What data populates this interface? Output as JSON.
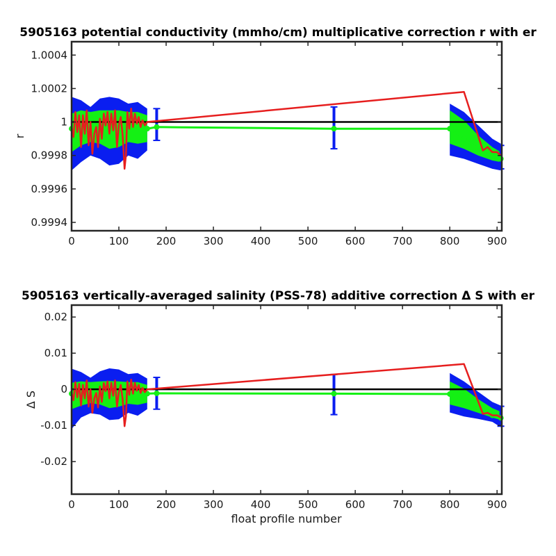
{
  "chart_data": [
    {
      "type": "line",
      "title": "5905163 potential conductivity (mmho/cm) multiplicative correction r with er",
      "xlabel": "",
      "ylabel": "r",
      "xlim": [
        0,
        910
      ],
      "ylim": [
        0.99935,
        1.00048
      ],
      "xticks": [
        0,
        100,
        200,
        300,
        400,
        500,
        600,
        700,
        800,
        900
      ],
      "xtick_labels": [
        "0",
        "100",
        "200",
        "300",
        "400",
        "500",
        "600",
        "700",
        "800",
        "900"
      ],
      "yticks": [
        0.9994,
        0.9996,
        0.9998,
        1.0,
        1.0002,
        1.0004
      ],
      "ytick_labels": [
        "0.9994",
        "0.9996",
        "0.9998",
        "1",
        "1.0002",
        "1.0004"
      ],
      "grid": false,
      "colors": {
        "outer_band": "#0a1ef0",
        "inner_band": "#14f014",
        "fit": "#14f014",
        "raw": "#e61e1e",
        "reference": "#000000"
      },
      "reference_value": 1.0,
      "fit": {
        "x": [
          0,
          20,
          40,
          60,
          80,
          100,
          120,
          140,
          160,
          180,
          555,
          800,
          830,
          860,
          890,
          908
        ],
        "y": [
          0.99996,
          0.99996,
          0.99996,
          0.99996,
          0.99996,
          0.99996,
          0.99996,
          0.99996,
          0.99996,
          0.99997,
          0.99996,
          0.99996,
          0.9999,
          0.99984,
          0.99979,
          0.99978
        ]
      },
      "inner_band": {
        "x": [
          0,
          20,
          40,
          60,
          80,
          100,
          120,
          140,
          160,
          800,
          830,
          860,
          890,
          908
        ],
        "lower": [
          0.99982,
          0.99986,
          0.99988,
          0.99987,
          0.99984,
          0.99985,
          0.99988,
          0.99987,
          0.99988,
          0.99987,
          0.99984,
          0.9998,
          0.99977,
          0.99976
        ],
        "upper": [
          1.00005,
          1.00007,
          1.00006,
          1.00007,
          1.00007,
          1.00007,
          1.00006,
          1.00006,
          1.00004,
          1.00007,
          1.00001,
          0.99992,
          0.99985,
          0.99982
        ]
      },
      "outer_band": {
        "x": [
          0,
          20,
          40,
          60,
          80,
          100,
          120,
          140,
          160,
          800,
          830,
          860,
          890,
          908
        ],
        "lower": [
          0.99971,
          0.99976,
          0.9998,
          0.99978,
          0.99974,
          0.99975,
          0.9998,
          0.99978,
          0.99983,
          0.9998,
          0.99978,
          0.99975,
          0.99972,
          0.99971
        ],
        "upper": [
          1.00015,
          1.00013,
          1.00009,
          1.00014,
          1.00015,
          1.00014,
          1.00011,
          1.00012,
          1.00008,
          1.00011,
          1.00006,
          0.99998,
          0.9999,
          0.99987
        ]
      },
      "raw": {
        "x": [
          0,
          4,
          8,
          12,
          16,
          20,
          24,
          28,
          32,
          36,
          40,
          44,
          48,
          52,
          56,
          60,
          64,
          68,
          72,
          76,
          80,
          84,
          88,
          92,
          96,
          100,
          104,
          108,
          112,
          115,
          118,
          122,
          126,
          130,
          134,
          138,
          142,
          146,
          150,
          155,
          160,
          830,
          870,
          880,
          890,
          900,
          908
        ],
        "y": [
          0.99997,
          0.99991,
          1.00006,
          0.99994,
          1.00004,
          0.99985,
          1.00004,
          0.99993,
          1.00007,
          0.99986,
          1.0,
          0.99981,
          0.99993,
          0.99997,
          0.99985,
          1.00002,
          0.9999,
          1.00005,
          0.99998,
          1.00006,
          0.99993,
          1.00005,
          0.99995,
          1.00007,
          0.99985,
          0.99998,
          1.00003,
          0.99992,
          0.99972,
          0.9998,
          1.00006,
          0.99996,
          1.00008,
          0.99997,
          1.00005,
          0.99999,
          1.00003,
          0.99997,
          1.00001,
          0.99998,
          1.0,
          1.00018,
          0.99983,
          0.99985,
          0.99982,
          0.99982,
          0.9998
        ]
      },
      "error_bars": [
        {
          "x": 180,
          "y": 0.99997,
          "lower": 0.99989,
          "upper": 1.00008
        },
        {
          "x": 555,
          "y": 0.99996,
          "lower": 0.99984,
          "upper": 1.00009
        },
        {
          "x": 908,
          "y": 0.99978,
          "lower": 0.99972,
          "upper": 0.99986
        }
      ]
    },
    {
      "type": "line",
      "title": "5905163 vertically-averaged salinity (PSS-78) additive correction Δ S with er",
      "xlabel": "float profile number",
      "ylabel": "Δ S",
      "xlim": [
        0,
        910
      ],
      "ylim": [
        -0.029,
        0.0233
      ],
      "xticks": [
        0,
        100,
        200,
        300,
        400,
        500,
        600,
        700,
        800,
        900
      ],
      "xtick_labels": [
        "0",
        "100",
        "200",
        "300",
        "400",
        "500",
        "600",
        "700",
        "800",
        "900"
      ],
      "yticks": [
        -0.02,
        -0.01,
        0,
        0.01,
        0.02
      ],
      "ytick_labels": [
        "-0.02",
        "-0.01",
        "0",
        "0.01",
        "0.02"
      ],
      "grid": false,
      "colors": {
        "outer_band": "#0a1ef0",
        "inner_band": "#14f014",
        "fit": "#14f014",
        "raw": "#e61e1e",
        "reference": "#000000"
      },
      "reference_value": 0,
      "fit": {
        "x": [
          0,
          20,
          40,
          60,
          80,
          100,
          120,
          140,
          160,
          180,
          555,
          800,
          830,
          860,
          890,
          908
        ],
        "y": [
          -0.0012,
          -0.0012,
          -0.0012,
          -0.0012,
          -0.0012,
          -0.0012,
          -0.0012,
          -0.0012,
          -0.0012,
          -0.0011,
          -0.0012,
          -0.0013,
          -0.003,
          -0.005,
          -0.0072,
          -0.0079
        ]
      },
      "inner_band": {
        "x": [
          0,
          20,
          40,
          60,
          80,
          100,
          120,
          140,
          160,
          800,
          830,
          860,
          890,
          908
        ],
        "lower": [
          -0.0055,
          -0.0045,
          -0.0038,
          -0.0042,
          -0.0052,
          -0.0048,
          -0.004,
          -0.0043,
          -0.0037,
          -0.0042,
          -0.0052,
          -0.0065,
          -0.0078,
          -0.0085
        ],
        "upper": [
          0.0018,
          0.0022,
          0.002,
          0.0022,
          0.0023,
          0.0022,
          0.002,
          0.002,
          0.0012,
          0.0022,
          0.0002,
          -0.0027,
          -0.0052,
          -0.0062
        ]
      },
      "outer_band": {
        "x": [
          0,
          20,
          40,
          60,
          80,
          100,
          120,
          140,
          160,
          800,
          830,
          860,
          890,
          908
        ],
        "lower": [
          -0.011,
          -0.0078,
          -0.0066,
          -0.007,
          -0.0085,
          -0.0083,
          -0.0065,
          -0.0073,
          -0.0055,
          -0.0064,
          -0.0075,
          -0.0082,
          -0.009,
          -0.0105
        ],
        "upper": [
          0.0057,
          0.0048,
          0.0032,
          0.005,
          0.0058,
          0.0055,
          0.0042,
          0.0045,
          0.003,
          0.0045,
          0.0022,
          -0.0007,
          -0.0035,
          -0.0045
        ]
      },
      "raw": {
        "x": [
          0,
          4,
          8,
          12,
          16,
          20,
          24,
          28,
          32,
          36,
          40,
          44,
          48,
          52,
          56,
          60,
          64,
          68,
          72,
          76,
          80,
          84,
          88,
          92,
          96,
          100,
          104,
          108,
          112,
          115,
          118,
          122,
          126,
          130,
          134,
          138,
          142,
          146,
          150,
          155,
          160,
          830,
          870,
          880,
          890,
          900,
          908
        ],
        "y": [
          -0.001,
          -0.003,
          0.002,
          -0.0022,
          0.0015,
          -0.0045,
          0.0012,
          -0.0025,
          0.0025,
          -0.0048,
          0.0,
          -0.0065,
          -0.0025,
          -0.001,
          -0.005,
          0.0008,
          -0.0035,
          0.0017,
          -0.0005,
          0.0022,
          -0.0025,
          0.0018,
          -0.0018,
          0.0025,
          -0.0048,
          -0.0008,
          0.0012,
          -0.0028,
          -0.0102,
          -0.0075,
          0.0022,
          -0.0015,
          0.0027,
          -0.0012,
          0.0018,
          -0.0004,
          0.0012,
          -0.001,
          0.0004,
          -0.0008,
          0.0,
          0.007,
          -0.0068,
          -0.0065,
          -0.0072,
          -0.0072,
          -0.0078
        ]
      },
      "error_bars": [
        {
          "x": 180,
          "y": -0.0011,
          "lower": -0.0055,
          "upper": 0.0033
        },
        {
          "x": 555,
          "y": -0.0012,
          "lower": -0.007,
          "upper": 0.0041
        },
        {
          "x": 908,
          "y": -0.0079,
          "lower": -0.0102,
          "upper": -0.0047
        }
      ]
    }
  ]
}
